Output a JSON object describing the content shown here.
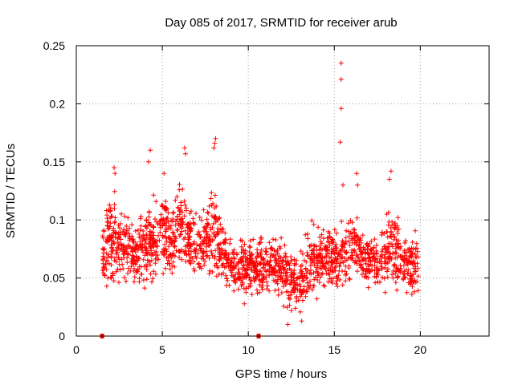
{
  "chart_data": {
    "type": "scatter",
    "title": "Day 085 of 2017, SRMTID for receiver arub",
    "xlabel": "GPS time / hours",
    "ylabel": "SRMTID / TECUs",
    "xlim": [
      0,
      24
    ],
    "ylim": [
      0,
      0.25
    ],
    "grid": true,
    "marker": "+",
    "color": "#ff0000",
    "x_ticks": [
      0,
      5,
      10,
      15,
      20
    ],
    "x_tick_labels": [
      "0",
      "5",
      "10",
      "15",
      "20"
    ],
    "y_ticks": [
      0,
      0.05,
      0.1,
      0.15,
      0.2,
      0.25
    ],
    "y_tick_labels": [
      "0",
      "0.05",
      "0.1",
      "0.15",
      "0.2",
      "0.25"
    ],
    "time_range": [
      1.5,
      19.9
    ],
    "dense_envelope": [
      {
        "x": 1.5,
        "lo": 0.03,
        "hi": 0.1
      },
      {
        "x": 2.0,
        "lo": 0.03,
        "hi": 0.13
      },
      {
        "x": 2.5,
        "lo": 0.04,
        "hi": 0.12
      },
      {
        "x": 3.0,
        "lo": 0.04,
        "hi": 0.11
      },
      {
        "x": 3.5,
        "lo": 0.035,
        "hi": 0.1
      },
      {
        "x": 4.0,
        "lo": 0.035,
        "hi": 0.12
      },
      {
        "x": 4.5,
        "lo": 0.04,
        "hi": 0.13
      },
      {
        "x": 5.0,
        "lo": 0.045,
        "hi": 0.13
      },
      {
        "x": 5.5,
        "lo": 0.05,
        "hi": 0.12
      },
      {
        "x": 6.0,
        "lo": 0.05,
        "hi": 0.14
      },
      {
        "x": 6.5,
        "lo": 0.05,
        "hi": 0.12
      },
      {
        "x": 7.0,
        "lo": 0.05,
        "hi": 0.11
      },
      {
        "x": 7.5,
        "lo": 0.05,
        "hi": 0.11
      },
      {
        "x": 8.0,
        "lo": 0.05,
        "hi": 0.14
      },
      {
        "x": 8.5,
        "lo": 0.04,
        "hi": 0.11
      },
      {
        "x": 9.0,
        "lo": 0.03,
        "hi": 0.09
      },
      {
        "x": 9.5,
        "lo": 0.03,
        "hi": 0.09
      },
      {
        "x": 10.0,
        "lo": 0.025,
        "hi": 0.09
      },
      {
        "x": 10.5,
        "lo": 0.03,
        "hi": 0.09
      },
      {
        "x": 11.0,
        "lo": 0.03,
        "hi": 0.09
      },
      {
        "x": 11.5,
        "lo": 0.03,
        "hi": 0.09
      },
      {
        "x": 12.0,
        "lo": 0.025,
        "hi": 0.09
      },
      {
        "x": 12.5,
        "lo": 0.02,
        "hi": 0.08
      },
      {
        "x": 13.0,
        "lo": 0.015,
        "hi": 0.08
      },
      {
        "x": 13.5,
        "lo": 0.025,
        "hi": 0.1
      },
      {
        "x": 14.0,
        "lo": 0.03,
        "hi": 0.1
      },
      {
        "x": 14.5,
        "lo": 0.03,
        "hi": 0.1
      },
      {
        "x": 15.0,
        "lo": 0.035,
        "hi": 0.1
      },
      {
        "x": 15.5,
        "lo": 0.035,
        "hi": 0.1
      },
      {
        "x": 16.0,
        "lo": 0.04,
        "hi": 0.11
      },
      {
        "x": 16.5,
        "lo": 0.04,
        "hi": 0.1
      },
      {
        "x": 17.0,
        "lo": 0.04,
        "hi": 0.09
      },
      {
        "x": 17.5,
        "lo": 0.04,
        "hi": 0.09
      },
      {
        "x": 18.0,
        "lo": 0.035,
        "hi": 0.11
      },
      {
        "x": 18.5,
        "lo": 0.035,
        "hi": 0.12
      },
      {
        "x": 19.0,
        "lo": 0.03,
        "hi": 0.09
      },
      {
        "x": 19.5,
        "lo": 0.03,
        "hi": 0.09
      },
      {
        "x": 19.9,
        "lo": 0.03,
        "hi": 0.1
      }
    ],
    "highlighted_points": [
      {
        "x": 15.4,
        "y": 0.235
      },
      {
        "x": 15.4,
        "y": 0.221
      },
      {
        "x": 15.4,
        "y": 0.196
      },
      {
        "x": 15.35,
        "y": 0.167
      },
      {
        "x": 8.1,
        "y": 0.17
      },
      {
        "x": 8.05,
        "y": 0.166
      },
      {
        "x": 8.0,
        "y": 0.162
      },
      {
        "x": 6.3,
        "y": 0.162
      },
      {
        "x": 6.35,
        "y": 0.157
      },
      {
        "x": 4.3,
        "y": 0.16
      },
      {
        "x": 4.2,
        "y": 0.15
      },
      {
        "x": 2.2,
        "y": 0.145
      },
      {
        "x": 2.25,
        "y": 0.14
      },
      {
        "x": 18.3,
        "y": 0.142
      },
      {
        "x": 18.2,
        "y": 0.135
      },
      {
        "x": 16.3,
        "y": 0.14
      },
      {
        "x": 16.35,
        "y": 0.13
      },
      {
        "x": 5.1,
        "y": 0.14
      },
      {
        "x": 15.5,
        "y": 0.13
      },
      {
        "x": 12.3,
        "y": 0.01
      },
      {
        "x": 13.1,
        "y": 0.013
      }
    ],
    "axis_markers": [
      {
        "x": 1.5,
        "y": 0
      },
      {
        "x": 10.6,
        "y": 0
      }
    ]
  }
}
